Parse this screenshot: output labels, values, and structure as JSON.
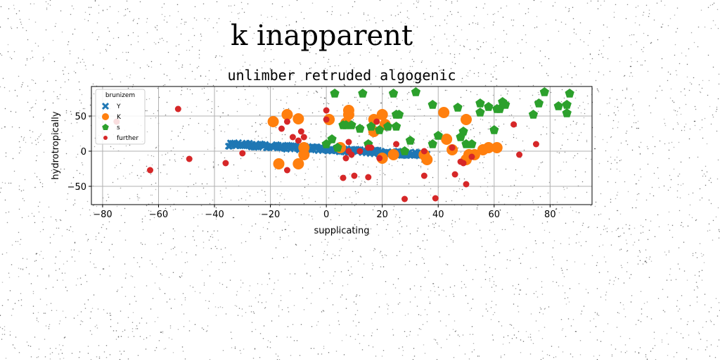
{
  "figure": {
    "suptitle": "k inapparent"
  },
  "chart_data": {
    "type": "scatter",
    "title": "unlimber retruded algogenic",
    "xlabel": "supplicating",
    "ylabel": "hydrotropically",
    "xlim": [
      -84,
      95
    ],
    "ylim": [
      -76,
      92
    ],
    "xticks": [
      -80,
      -60,
      -40,
      -20,
      0,
      20,
      40,
      60,
      80
    ],
    "yticks": [
      -50,
      0,
      50
    ],
    "grid": true,
    "legend": {
      "title": "brunizem",
      "position": "upper-left"
    },
    "series": [
      {
        "name": "Y",
        "marker": "x",
        "color": "#1f77b4",
        "line": {
          "x0": -35,
          "y0": 10,
          "x1": 36,
          "y1": -5,
          "count": 200,
          "spread": 3
        }
      },
      {
        "name": "K",
        "marker": "circle",
        "color": "#ff7f0e",
        "points": [
          [
            -19,
            42
          ],
          [
            -14,
            52
          ],
          [
            -10,
            46
          ],
          [
            -17,
            -18
          ],
          [
            -10,
            -18
          ],
          [
            -8,
            -5
          ],
          [
            -8,
            5
          ],
          [
            1,
            45
          ],
          [
            5,
            5
          ],
          [
            7,
            40
          ],
          [
            8,
            52
          ],
          [
            8,
            58
          ],
          [
            17,
            28
          ],
          [
            17,
            45
          ],
          [
            20,
            52
          ],
          [
            21,
            38
          ],
          [
            20,
            -10
          ],
          [
            24,
            -5
          ],
          [
            35,
            -5
          ],
          [
            36,
            -12
          ],
          [
            42,
            55
          ],
          [
            43,
            17
          ],
          [
            45,
            2
          ],
          [
            50,
            -12
          ],
          [
            50,
            45
          ],
          [
            51,
            -5
          ],
          [
            53,
            -5
          ],
          [
            56,
            2
          ],
          [
            58,
            5
          ],
          [
            61,
            5
          ]
        ]
      },
      {
        "name": "s",
        "marker": "pentagon",
        "color": "#2ca02c",
        "points": [
          [
            3,
            82
          ],
          [
            13,
            82
          ],
          [
            24,
            82
          ],
          [
            32,
            84
          ],
          [
            38,
            66
          ],
          [
            47,
            62
          ],
          [
            55,
            68
          ],
          [
            55,
            55
          ],
          [
            58,
            63
          ],
          [
            62,
            60
          ],
          [
            63,
            70
          ],
          [
            64,
            66
          ],
          [
            74,
            52
          ],
          [
            76,
            68
          ],
          [
            78,
            84
          ],
          [
            83,
            64
          ],
          [
            86,
            54
          ],
          [
            86,
            66
          ],
          [
            87,
            82
          ],
          [
            2,
            17
          ],
          [
            6,
            37
          ],
          [
            7,
            37
          ],
          [
            9,
            37
          ],
          [
            12,
            32
          ],
          [
            16,
            35
          ],
          [
            19,
            30
          ],
          [
            22,
            35
          ],
          [
            25,
            52
          ],
          [
            26,
            52
          ],
          [
            25,
            35
          ],
          [
            30,
            15
          ],
          [
            38,
            10
          ],
          [
            40,
            22
          ],
          [
            48,
            20
          ],
          [
            49,
            28
          ],
          [
            50,
            10
          ],
          [
            52,
            10
          ],
          [
            60,
            30
          ],
          [
            61,
            60
          ],
          [
            0,
            10
          ],
          [
            4,
            5
          ],
          [
            15,
            10
          ],
          [
            28,
            0
          ]
        ]
      },
      {
        "name": "further",
        "marker": "dot",
        "color": "#d62728",
        "points": [
          [
            -75,
            42
          ],
          [
            -63,
            -27
          ],
          [
            -53,
            60
          ],
          [
            -49,
            -11
          ],
          [
            -36,
            -17
          ],
          [
            -30,
            -3
          ],
          [
            -16,
            32
          ],
          [
            -14,
            -27
          ],
          [
            -14,
            42
          ],
          [
            -12,
            20
          ],
          [
            -10,
            15
          ],
          [
            -9,
            28
          ],
          [
            -8,
            20
          ],
          [
            0,
            58
          ],
          [
            0,
            45
          ],
          [
            6,
            -38
          ],
          [
            7,
            -10
          ],
          [
            8,
            13
          ],
          [
            8,
            0
          ],
          [
            9,
            -5
          ],
          [
            10,
            -35
          ],
          [
            12,
            0
          ],
          [
            15,
            -37
          ],
          [
            16,
            5
          ],
          [
            18,
            42
          ],
          [
            19,
            -10
          ],
          [
            28,
            -68
          ],
          [
            35,
            -35
          ],
          [
            39,
            -67
          ],
          [
            45,
            5
          ],
          [
            46,
            -33
          ],
          [
            48,
            -15
          ],
          [
            49,
            -17
          ],
          [
            50,
            -47
          ],
          [
            52,
            -8
          ],
          [
            67,
            38
          ],
          [
            69,
            -5
          ],
          [
            75,
            10
          ],
          [
            25,
            10
          ],
          [
            35,
            0
          ],
          [
            15,
            5
          ]
        ]
      }
    ]
  }
}
